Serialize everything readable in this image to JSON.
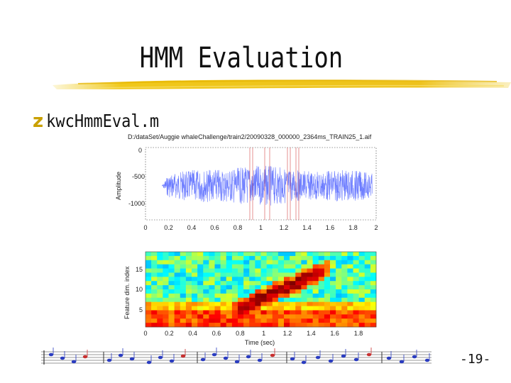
{
  "slide": {
    "title": "HMM Evaluation",
    "bullet_icon": "z",
    "bullet_text": "kwcHmmEval.m",
    "page_number": "-19-"
  },
  "figure": {
    "path_title": "D:/dataSet/Auggie whaleChallenge/train2/20090328_000000_2364ms_TRAIN25_1.aif",
    "waveform": {
      "ylabel": "Amplitude",
      "yticks": [
        "0",
        "-500",
        "-1000"
      ],
      "xticks": [
        "0",
        "0.2",
        "0.4",
        "0.6",
        "0.8",
        "1",
        "1.2",
        "1.4",
        "1.6",
        "1.8",
        "2"
      ]
    },
    "spectrogram": {
      "ylabel": "Feature dim. index",
      "xlabel": "Time (sec)",
      "yticks": [
        "15",
        "10",
        "5"
      ],
      "xticks": [
        "0",
        "0.2",
        "0.4",
        "0.6",
        "0.8",
        "1",
        "1.2",
        "1.4",
        "1.6",
        "1.8"
      ]
    }
  },
  "colors": {
    "accent_gold": "#c9a000",
    "wave_blue": "#6c7cff",
    "marker_red": "#cc3030"
  }
}
